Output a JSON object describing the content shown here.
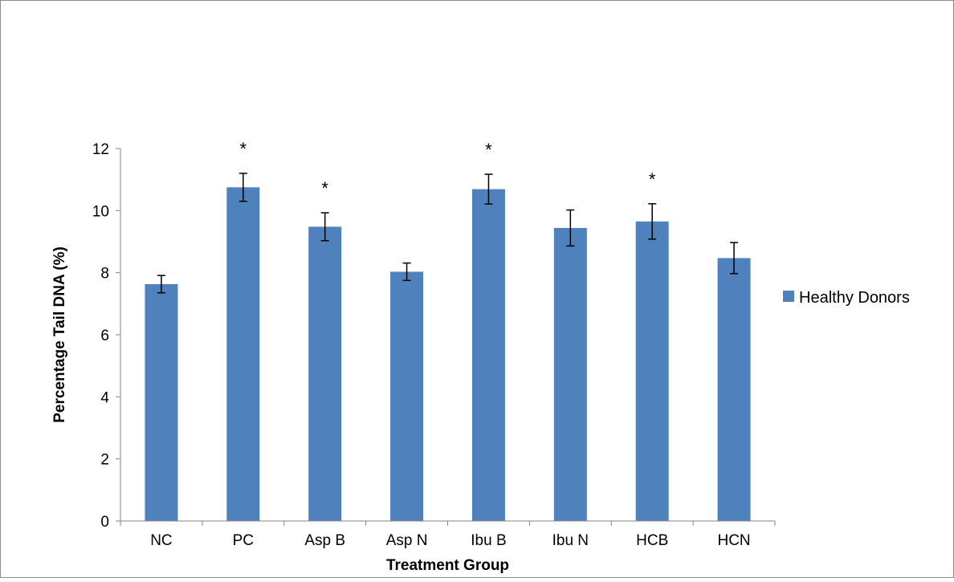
{
  "chart_data": {
    "type": "bar",
    "categories": [
      "NC",
      "PC",
      "Asp B",
      "Asp N",
      "Ibu B",
      "Ibu N",
      "HCB",
      "HCN"
    ],
    "series": [
      {
        "name": "Healthy Donors",
        "color": "#4F81BD",
        "values": [
          7.63,
          10.75,
          9.48,
          8.03,
          10.69,
          9.44,
          9.65,
          8.47
        ],
        "error": [
          0.28,
          0.45,
          0.45,
          0.28,
          0.48,
          0.58,
          0.57,
          0.5
        ],
        "significance": [
          "",
          "*",
          "*",
          "",
          "*",
          "",
          "*",
          ""
        ]
      }
    ],
    "xlabel": "Treatment Group",
    "ylabel": "Percentage Tail DNA (%)",
    "ylim": [
      0,
      12
    ],
    "yticks": [
      0,
      2,
      4,
      6,
      8,
      10,
      12
    ],
    "grid": false,
    "legend_position": "right"
  }
}
